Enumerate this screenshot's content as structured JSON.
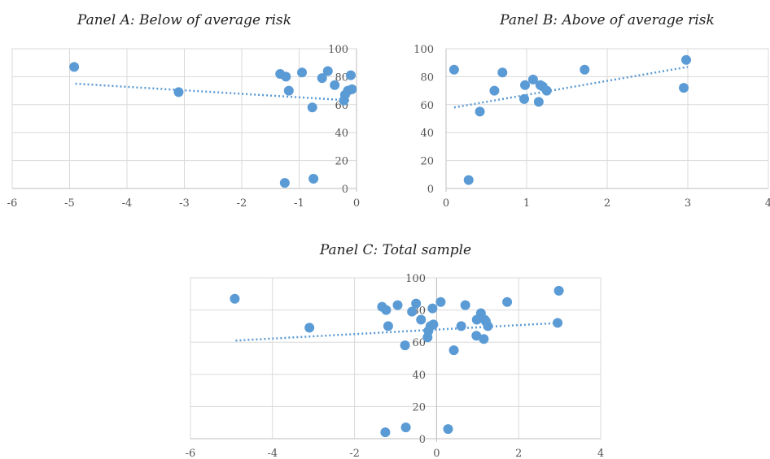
{
  "colors": {
    "marker": "#5b9bd5",
    "trendline": "#5b9bd5",
    "grid": "#d9d9d9",
    "text": "#555555"
  },
  "chart_data": [
    {
      "type": "scatter",
      "title": "Panel A: Below of average risk",
      "xlabel": "",
      "ylabel": "",
      "xlim": [
        -6,
        0
      ],
      "ylim": [
        0,
        100
      ],
      "x_ticks": [
        "-6",
        "-5",
        "-4",
        "-3",
        "-2",
        "-1",
        "0"
      ],
      "y_ticks": [
        "0",
        "20",
        "40",
        "60",
        "80",
        "100"
      ],
      "grid": true,
      "trendline": {
        "style": "dotted linear",
        "x": [
          -4.9,
          -0.1
        ],
        "y": [
          75,
          63
        ]
      },
      "points": [
        {
          "x": -4.92,
          "y": 87
        },
        {
          "x": -3.1,
          "y": 69
        },
        {
          "x": -1.33,
          "y": 82
        },
        {
          "x": -1.23,
          "y": 80
        },
        {
          "x": -1.18,
          "y": 70
        },
        {
          "x": -0.95,
          "y": 83
        },
        {
          "x": -0.77,
          "y": 58
        },
        {
          "x": -0.5,
          "y": 84
        },
        {
          "x": -0.38,
          "y": 74
        },
        {
          "x": -0.6,
          "y": 79
        },
        {
          "x": -0.22,
          "y": 63
        },
        {
          "x": -0.2,
          "y": 67
        },
        {
          "x": -0.15,
          "y": 70
        },
        {
          "x": -0.1,
          "y": 81
        },
        {
          "x": -0.08,
          "y": 71
        },
        {
          "x": -1.25,
          "y": 4
        },
        {
          "x": -0.75,
          "y": 7
        }
      ]
    },
    {
      "type": "scatter",
      "title": "Panel B: Above of average risk",
      "xlabel": "",
      "ylabel": "",
      "xlim": [
        0,
        4
      ],
      "ylim": [
        0,
        100
      ],
      "x_ticks": [
        "0",
        "1",
        "2",
        "3",
        "4"
      ],
      "y_ticks": [
        "0",
        "20",
        "40",
        "60",
        "80",
        "100"
      ],
      "grid": true,
      "trendline": {
        "style": "dotted linear",
        "x": [
          0.1,
          3.0
        ],
        "y": [
          58,
          87
        ]
      },
      "points": [
        {
          "x": 0.1,
          "y": 85
        },
        {
          "x": 0.28,
          "y": 6
        },
        {
          "x": 0.42,
          "y": 55
        },
        {
          "x": 0.6,
          "y": 70
        },
        {
          "x": 0.7,
          "y": 83
        },
        {
          "x": 0.97,
          "y": 64
        },
        {
          "x": 0.98,
          "y": 74
        },
        {
          "x": 1.08,
          "y": 78
        },
        {
          "x": 1.15,
          "y": 62
        },
        {
          "x": 1.17,
          "y": 74
        },
        {
          "x": 1.2,
          "y": 73
        },
        {
          "x": 1.25,
          "y": 70
        },
        {
          "x": 1.72,
          "y": 85
        },
        {
          "x": 2.95,
          "y": 72
        },
        {
          "x": 2.98,
          "y": 92
        }
      ]
    },
    {
      "type": "scatter",
      "title": "Panel C: Total sample",
      "xlabel": "",
      "ylabel": "",
      "xlim": [
        -6,
        4
      ],
      "ylim": [
        0,
        100
      ],
      "x_ticks": [
        "-6",
        "-4",
        "-2",
        "0",
        "2",
        "4"
      ],
      "y_ticks": [
        "0",
        "20",
        "40",
        "60",
        "80",
        "100"
      ],
      "grid": true,
      "trendline": {
        "style": "dotted linear",
        "x": [
          -4.9,
          3.0
        ],
        "y": [
          61,
          72
        ]
      },
      "points": [
        {
          "x": -4.92,
          "y": 87
        },
        {
          "x": -3.1,
          "y": 69
        },
        {
          "x": -1.33,
          "y": 82
        },
        {
          "x": -1.23,
          "y": 80
        },
        {
          "x": -1.18,
          "y": 70
        },
        {
          "x": -0.95,
          "y": 83
        },
        {
          "x": -0.77,
          "y": 58
        },
        {
          "x": -0.6,
          "y": 79
        },
        {
          "x": -0.5,
          "y": 84
        },
        {
          "x": -0.38,
          "y": 74
        },
        {
          "x": -0.22,
          "y": 63
        },
        {
          "x": -0.2,
          "y": 67
        },
        {
          "x": -0.15,
          "y": 70
        },
        {
          "x": -0.1,
          "y": 81
        },
        {
          "x": -0.08,
          "y": 71
        },
        {
          "x": -1.25,
          "y": 4
        },
        {
          "x": -0.75,
          "y": 7
        },
        {
          "x": 0.1,
          "y": 85
        },
        {
          "x": 0.28,
          "y": 6
        },
        {
          "x": 0.42,
          "y": 55
        },
        {
          "x": 0.6,
          "y": 70
        },
        {
          "x": 0.7,
          "y": 83
        },
        {
          "x": 0.97,
          "y": 64
        },
        {
          "x": 0.98,
          "y": 74
        },
        {
          "x": 1.08,
          "y": 78
        },
        {
          "x": 1.15,
          "y": 62
        },
        {
          "x": 1.17,
          "y": 74
        },
        {
          "x": 1.2,
          "y": 73
        },
        {
          "x": 1.25,
          "y": 70
        },
        {
          "x": 1.72,
          "y": 85
        },
        {
          "x": 2.95,
          "y": 72
        },
        {
          "x": 2.98,
          "y": 92
        }
      ]
    }
  ]
}
